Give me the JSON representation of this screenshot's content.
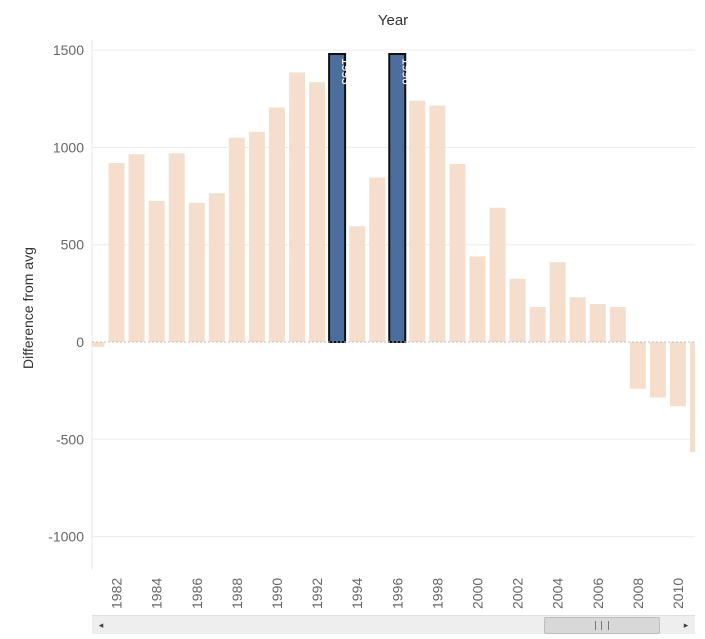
{
  "chart_data": {
    "type": "bar",
    "title": "Year",
    "ylabel": "Difference from avg",
    "ylim": [
      -1170,
      1500
    ],
    "yticks": [
      1500,
      1000,
      500,
      0,
      -500,
      -1000
    ],
    "ytick_labels": [
      "1500",
      "1000",
      "500",
      "0",
      "-500",
      "-1000"
    ],
    "grid": true,
    "categories": [
      1981,
      1982,
      1983,
      1984,
      1985,
      1986,
      1987,
      1988,
      1989,
      1990,
      1991,
      1992,
      1993,
      1994,
      1995,
      1996,
      1997,
      1998,
      1999,
      2000,
      2001,
      2002,
      2003,
      2004,
      2005,
      2006,
      2007,
      2008,
      2009,
      2010,
      2011
    ],
    "values": [
      -25,
      920,
      965,
      725,
      970,
      715,
      765,
      1050,
      1080,
      1205,
      1385,
      1335,
      1480,
      595,
      845,
      1480,
      1240,
      1215,
      915,
      440,
      690,
      325,
      180,
      410,
      230,
      195,
      180,
      -240,
      -285,
      -330,
      -565
    ],
    "xtick_labels": [
      "1982",
      "1984",
      "1986",
      "1988",
      "1990",
      "1992",
      "1994",
      "1996",
      "1998",
      "2000",
      "2002",
      "2004",
      "2006",
      "2008",
      "2010"
    ],
    "highlighted": [
      1993,
      1996
    ],
    "highlight_labels": [
      "1993",
      "1996"
    ],
    "colors": {
      "bar": "#f5dfcc",
      "highlight": "#4c6e9c",
      "highlight_border": "#111111",
      "grid": "#ececec",
      "zero_line": "#bdbdbd",
      "text": "#666666",
      "title": "#333333"
    }
  },
  "scrollbar": {
    "left_arrow": "◂",
    "right_arrow": "▸"
  }
}
